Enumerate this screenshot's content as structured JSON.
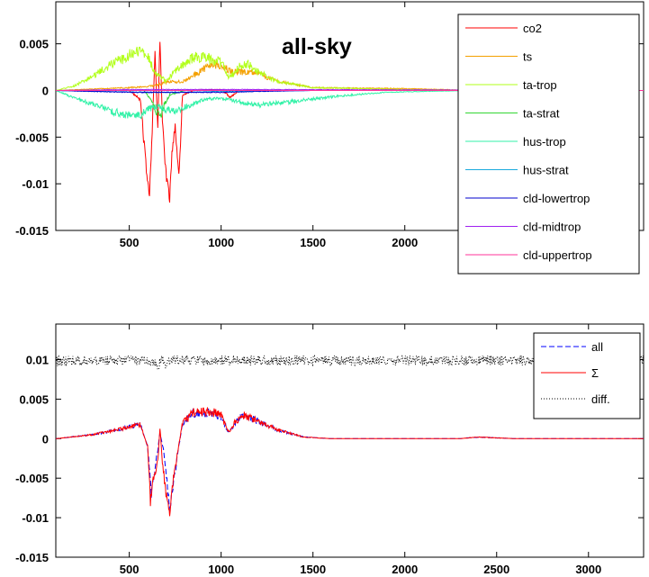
{
  "chart_data": [
    {
      "type": "line",
      "annotation": "all-sky",
      "title": "",
      "xlabel": "",
      "ylabel": "",
      "xlim": [
        100,
        3300
      ],
      "ylim": [
        -0.015,
        0.0095
      ],
      "xticks": [
        500,
        1000,
        1500,
        2000
      ],
      "yticks": [
        -0.015,
        -0.01,
        -0.005,
        0,
        0.005
      ],
      "ytick_labels": [
        "-0.015",
        "-0.01",
        "-0.005",
        "0",
        "0.005"
      ],
      "legend_position": "top-right",
      "grid": false,
      "series": [
        {
          "name": "co2",
          "color": "#ff0000",
          "points": [
            [
              100,
              0
            ],
            [
              500,
              0
            ],
            [
              560,
              -0.001
            ],
            [
              590,
              -0.008
            ],
            [
              610,
              -0.011
            ],
            [
              625,
              -0.004
            ],
            [
              640,
              0.004
            ],
            [
              655,
              -0.004
            ],
            [
              667,
              0.0055
            ],
            [
              680,
              -0.003
            ],
            [
              700,
              -0.009
            ],
            [
              720,
              -0.0115
            ],
            [
              735,
              -0.006
            ],
            [
              750,
              -0.004
            ],
            [
              770,
              -0.009
            ],
            [
              790,
              -0.0005
            ],
            [
              850,
              0
            ],
            [
              1000,
              0.0001
            ],
            [
              1050,
              -0.0007
            ],
            [
              1100,
              0
            ],
            [
              2300,
              0
            ],
            [
              2400,
              -0.0003
            ],
            [
              2600,
              0
            ],
            [
              3300,
              0
            ]
          ]
        },
        {
          "name": "ts",
          "color": "#f4a000",
          "points": [
            [
              100,
              0
            ],
            [
              500,
              0.0003
            ],
            [
              640,
              0.0005
            ],
            [
              700,
              0.0009
            ],
            [
              800,
              0.001
            ],
            [
              900,
              0.0022
            ],
            [
              950,
              0.0028
            ],
            [
              1000,
              0.0028
            ],
            [
              1050,
              0.002
            ],
            [
              1100,
              0.002
            ],
            [
              1200,
              0.0018
            ],
            [
              1300,
              0.001
            ],
            [
              1500,
              0.0003
            ],
            [
              2000,
              0.0002
            ],
            [
              2400,
              0
            ],
            [
              3300,
              0
            ]
          ]
        },
        {
          "name": "ta-trop",
          "color": "#b2ff1a",
          "points": [
            [
              100,
              0
            ],
            [
              200,
              0.0005
            ],
            [
              300,
              0.0015
            ],
            [
              400,
              0.0028
            ],
            [
              500,
              0.0038
            ],
            [
              560,
              0.0043
            ],
            [
              600,
              0.0038
            ],
            [
              640,
              0.002
            ],
            [
              700,
              0.001
            ],
            [
              750,
              0.002
            ],
            [
              800,
              0.003
            ],
            [
              850,
              0.0035
            ],
            [
              900,
              0.0036
            ],
            [
              950,
              0.0033
            ],
            [
              1000,
              0.003
            ],
            [
              1040,
              0.0015
            ],
            [
              1070,
              0.0018
            ],
            [
              1100,
              0.0026
            ],
            [
              1150,
              0.0028
            ],
            [
              1200,
              0.002
            ],
            [
              1300,
              0.001
            ],
            [
              1500,
              0.0003
            ],
            [
              2000,
              0.0001
            ],
            [
              2400,
              0
            ],
            [
              3300,
              0
            ]
          ]
        },
        {
          "name": "ta-strat",
          "color": "#33d633",
          "points": [
            [
              100,
              0
            ],
            [
              580,
              0
            ],
            [
              620,
              -0.001
            ],
            [
              650,
              -0.0025
            ],
            [
              670,
              -0.003
            ],
            [
              690,
              -0.0015
            ],
            [
              720,
              -0.0005
            ],
            [
              800,
              0
            ],
            [
              3300,
              0
            ]
          ]
        },
        {
          "name": "hus-trop",
          "color": "#33f2a8",
          "points": [
            [
              100,
              0
            ],
            [
              200,
              -0.0008
            ],
            [
              300,
              -0.0015
            ],
            [
              400,
              -0.0022
            ],
            [
              500,
              -0.0027
            ],
            [
              560,
              -0.0026
            ],
            [
              600,
              -0.002
            ],
            [
              650,
              -0.0017
            ],
            [
              700,
              -0.002
            ],
            [
              750,
              -0.0022
            ],
            [
              800,
              -0.0018
            ],
            [
              900,
              -0.001
            ],
            [
              1000,
              -0.0008
            ],
            [
              1100,
              -0.0012
            ],
            [
              1200,
              -0.0016
            ],
            [
              1300,
              -0.0014
            ],
            [
              1500,
              -0.0009
            ],
            [
              1700,
              -0.0005
            ],
            [
              1900,
              -0.0002
            ],
            [
              2100,
              -0.0001
            ],
            [
              2400,
              0
            ],
            [
              3300,
              0
            ]
          ]
        },
        {
          "name": "hus-strat",
          "color": "#1aaadd",
          "points": [
            [
              100,
              0
            ],
            [
              600,
              -0.0002
            ],
            [
              800,
              -0.0002
            ],
            [
              1000,
              -0.0001
            ],
            [
              1500,
              0
            ],
            [
              3300,
              0
            ]
          ]
        },
        {
          "name": "cld-lowertrop",
          "color": "#0000cc",
          "points": [
            [
              100,
              0
            ],
            [
              500,
              -0.0002
            ],
            [
              800,
              -0.0002
            ],
            [
              1000,
              -0.0002
            ],
            [
              1200,
              -0.0001
            ],
            [
              1500,
              0
            ],
            [
              3300,
              0
            ]
          ]
        },
        {
          "name": "cld-midtrop",
          "color": "#a020f0",
          "points": [
            [
              100,
              0
            ],
            [
              500,
              0.0001
            ],
            [
              900,
              0.0001
            ],
            [
              1200,
              0.0001
            ],
            [
              3300,
              0
            ]
          ]
        },
        {
          "name": "cld-uppertrop",
          "color": "#ff3399",
          "points": [
            [
              100,
              0
            ],
            [
              3300,
              0
            ]
          ]
        }
      ]
    },
    {
      "type": "line",
      "title": "",
      "xlabel": "",
      "ylabel": "",
      "xlim": [
        100,
        3300
      ],
      "ylim": [
        -0.015,
        0.0145
      ],
      "xticks": [
        500,
        1000,
        1500,
        2000,
        2500,
        3000
      ],
      "yticks": [
        -0.015,
        -0.01,
        -0.005,
        0,
        0.005,
        0.01
      ],
      "ytick_labels": [
        "-0.015",
        "-0.01",
        "-0.005",
        "0",
        "0.005",
        "0.01"
      ],
      "legend_position": "top-right",
      "grid": false,
      "series": [
        {
          "name": "all",
          "color": "#0000ff",
          "style": "dashed",
          "points": [
            [
              100,
              0
            ],
            [
              300,
              0.0005
            ],
            [
              450,
              0.0012
            ],
            [
              560,
              0.0018
            ],
            [
              600,
              -0.001
            ],
            [
              620,
              -0.007
            ],
            [
              640,
              -0.004
            ],
            [
              667,
              0.0008
            ],
            [
              690,
              -0.002
            ],
            [
              720,
              -0.009
            ],
            [
              750,
              -0.004
            ],
            [
              790,
              0.002
            ],
            [
              850,
              0.0032
            ],
            [
              950,
              0.0033
            ],
            [
              1000,
              0.0028
            ],
            [
              1040,
              0.0008
            ],
            [
              1080,
              0.002
            ],
            [
              1120,
              0.003
            ],
            [
              1200,
              0.0022
            ],
            [
              1300,
              0.0012
            ],
            [
              1450,
              0.0002
            ],
            [
              1600,
              0
            ],
            [
              2300,
              0
            ],
            [
              2400,
              0.0002
            ],
            [
              2600,
              0
            ],
            [
              3300,
              0
            ]
          ]
        },
        {
          "name": "Σ",
          "color": "#ff0000",
          "style": "solid",
          "points": [
            [
              100,
              0
            ],
            [
              300,
              0.0005
            ],
            [
              450,
              0.0012
            ],
            [
              560,
              0.0018
            ],
            [
              600,
              -0.001
            ],
            [
              615,
              -0.008
            ],
            [
              630,
              -0.005
            ],
            [
              655,
              -0.003
            ],
            [
              667,
              0.0015
            ],
            [
              680,
              -0.003
            ],
            [
              700,
              -0.007
            ],
            [
              720,
              -0.0095
            ],
            [
              740,
              -0.005
            ],
            [
              790,
              0.002
            ],
            [
              850,
              0.0033
            ],
            [
              950,
              0.0034
            ],
            [
              1000,
              0.0029
            ],
            [
              1040,
              0.0008
            ],
            [
              1080,
              0.0022
            ],
            [
              1120,
              0.003
            ],
            [
              1200,
              0.0022
            ],
            [
              1300,
              0.0012
            ],
            [
              1450,
              0.0002
            ],
            [
              1600,
              0
            ],
            [
              2300,
              0
            ],
            [
              2400,
              0.0002
            ],
            [
              2600,
              0
            ],
            [
              3300,
              0
            ]
          ]
        },
        {
          "name": "diff.",
          "color": "#000000",
          "style": "dotted",
          "points": [
            [
              100,
              0.0098
            ],
            [
              600,
              0.0099
            ],
            [
              640,
              0.0095
            ],
            [
              660,
              0.0093
            ],
            [
              680,
              0.0101
            ],
            [
              700,
              0.0094
            ],
            [
              720,
              0.0099
            ],
            [
              800,
              0.0099
            ],
            [
              3300,
              0.0099
            ]
          ]
        }
      ]
    }
  ]
}
